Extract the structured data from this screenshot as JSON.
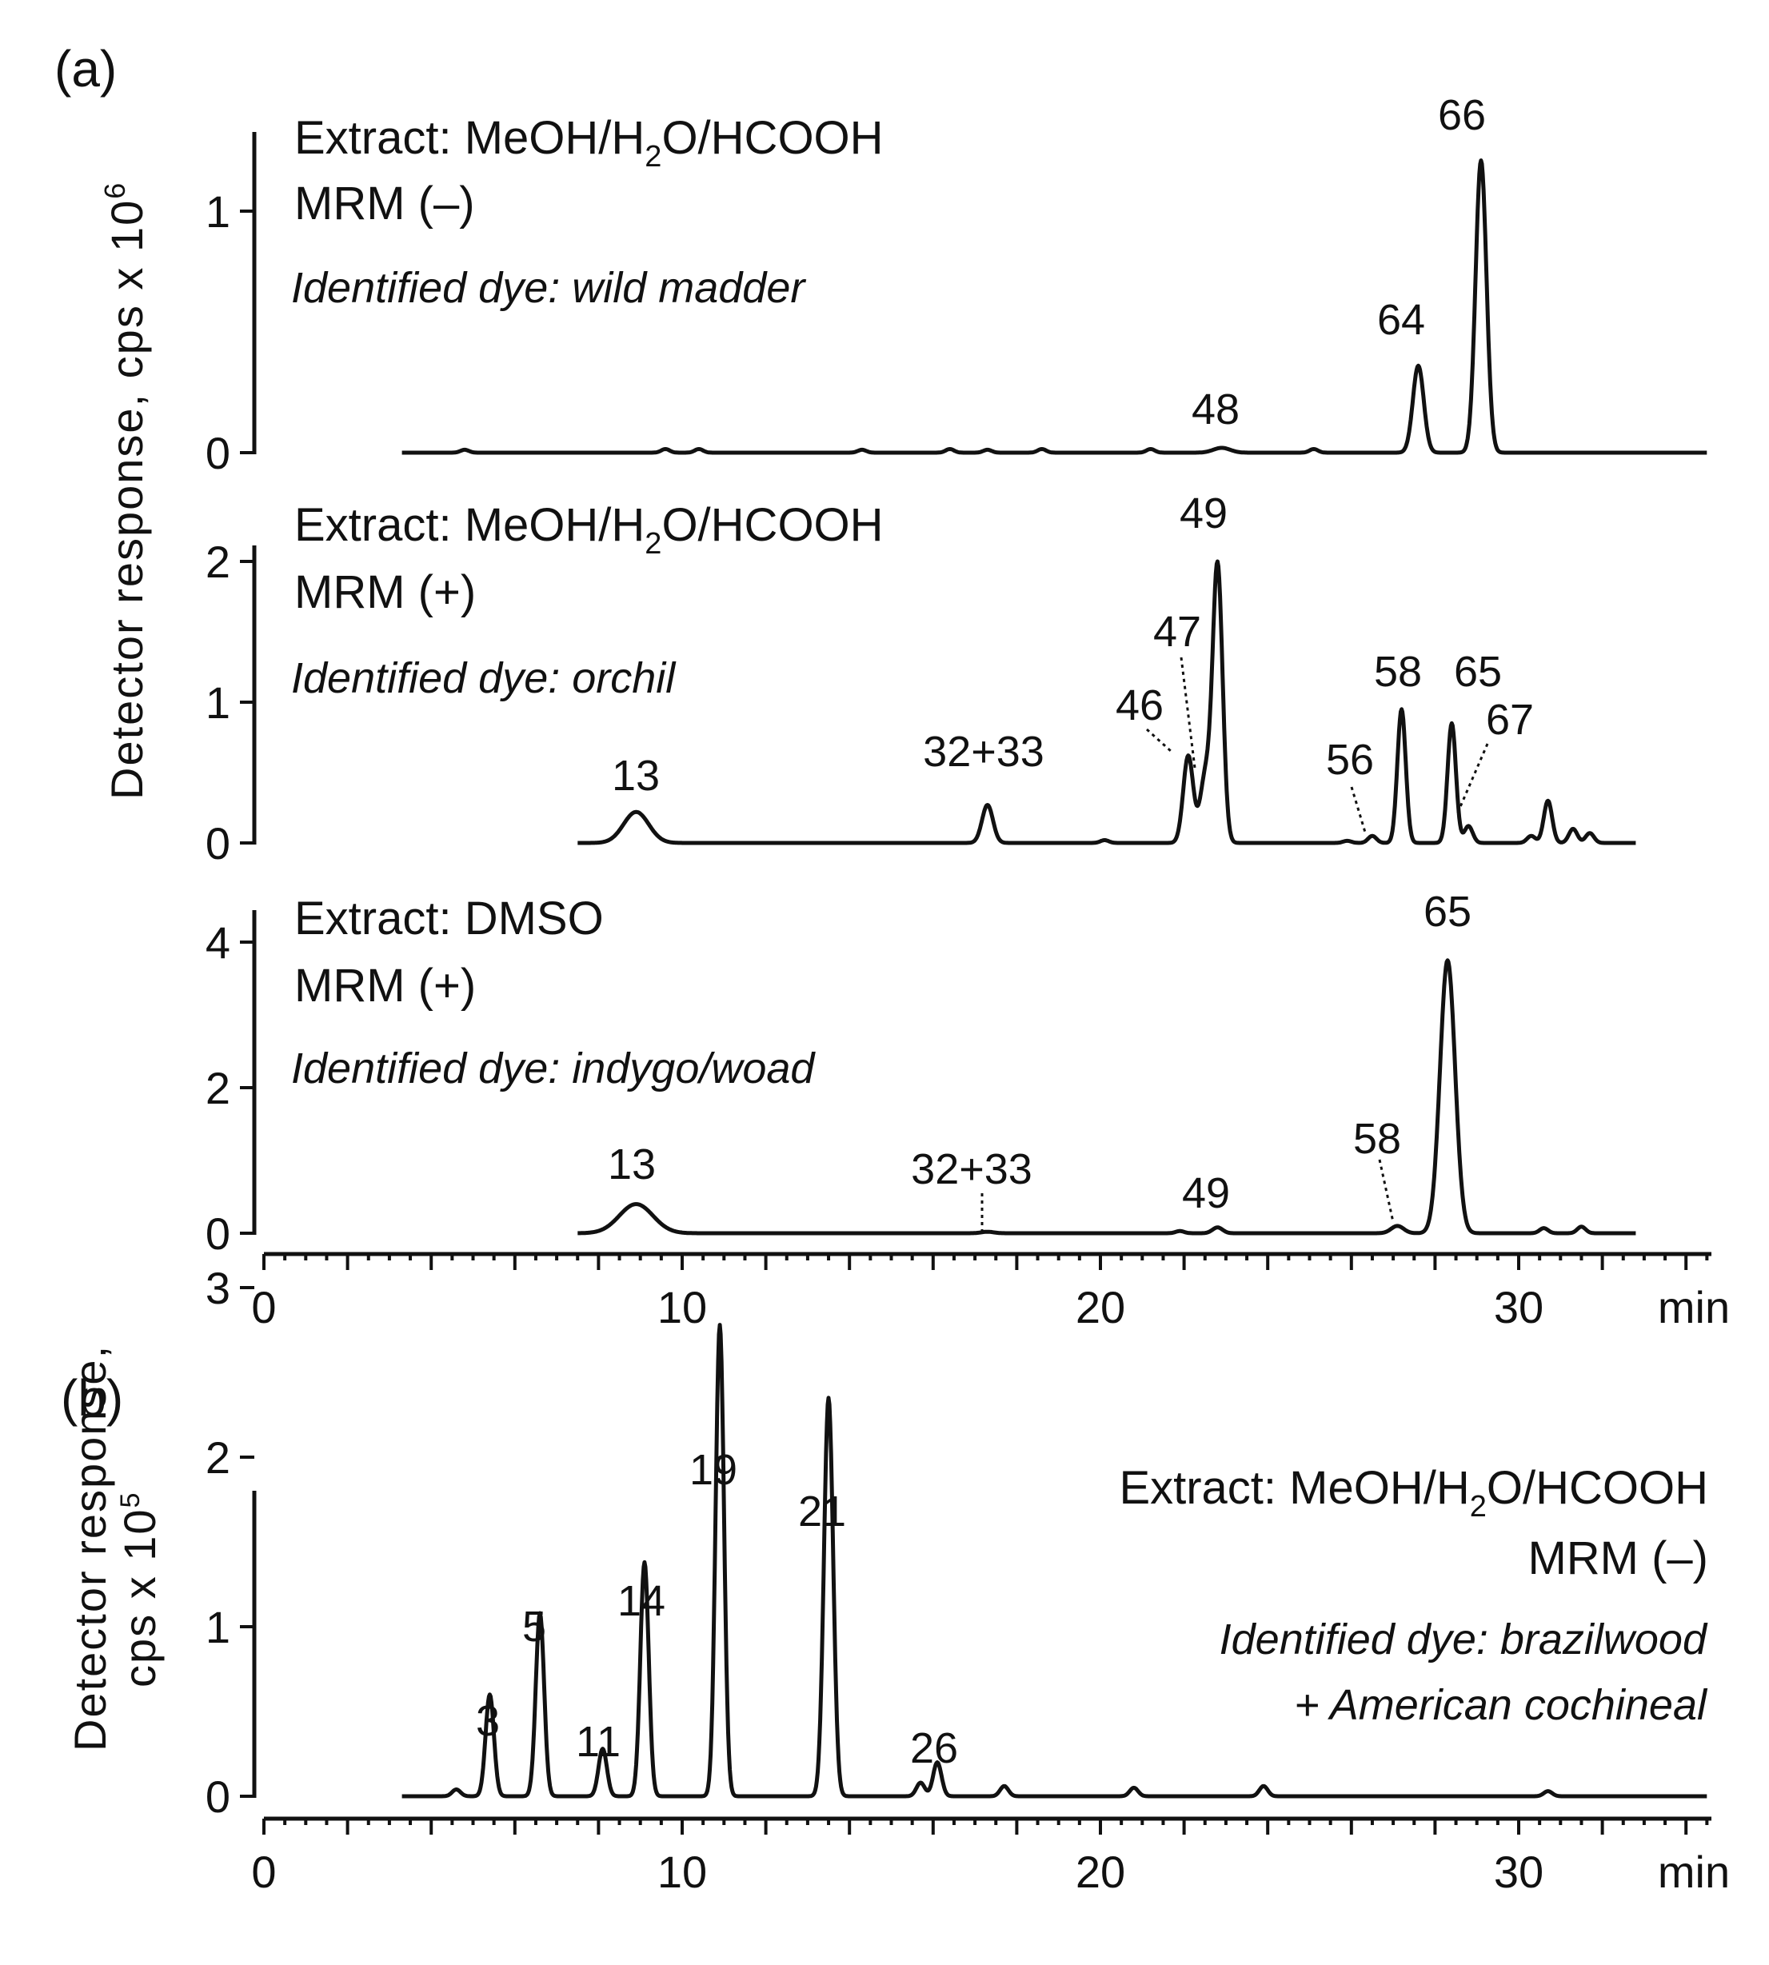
{
  "panels": {
    "a": {
      "letter": "(a)",
      "ylabel_main": "Detector response, cps x 10",
      "ylabel_exp": "6"
    },
    "b": {
      "letter": "(b)",
      "ylabel_line1": "Detector response,",
      "ylabel_line2_main": "cps x 10",
      "ylabel_line2_exp": "5",
      "info": {
        "extract_pre": "Extract: MeOH/H",
        "extract_sub": "2",
        "extract_post": "O/HCOOH",
        "mode": "MRM (–)",
        "dye_line1": "Identified dye:  brazilwood",
        "dye_line2": "+ American cochineal"
      }
    }
  },
  "chart_data": [
    {
      "type": "line",
      "panel": "a",
      "x_ticks": [
        0,
        10,
        20,
        30
      ],
      "x_unit": "min",
      "xlim": [
        0,
        34.5
      ],
      "y_ticks": [
        0,
        1
      ],
      "ylim": [
        0,
        1.2
      ],
      "peak_shape": "gaussian",
      "info": {
        "extract_pre": "Extract: MeOH/H",
        "extract_sub": "2",
        "extract_post": "O/HCOOH",
        "mode": "MRM (–)",
        "dye": "Identified dye: wild madder"
      },
      "trace_range": [
        3.3,
        34.5
      ],
      "peaks": [
        {
          "x": 22.9,
          "y": 0.02,
          "w": 0.2,
          "label": "48"
        },
        {
          "x": 27.6,
          "y": 0.36,
          "w": 0.13,
          "label": "64"
        },
        {
          "x": 29.1,
          "y": 1.21,
          "w": 0.13,
          "label": "66"
        }
      ],
      "bumps": [
        [
          4.8,
          0.012
        ],
        [
          9.6,
          0.015
        ],
        [
          10.4,
          0.015
        ],
        [
          14.3,
          0.012
        ],
        [
          16.4,
          0.015
        ],
        [
          17.3,
          0.012
        ],
        [
          18.6,
          0.015
        ],
        [
          21.2,
          0.015
        ],
        [
          25.1,
          0.015
        ]
      ]
    },
    {
      "type": "line",
      "panel": "a",
      "x_ticks": [
        0,
        10,
        20,
        30
      ],
      "x_unit": "min",
      "xlim": [
        0,
        34.5
      ],
      "y_ticks": [
        0,
        1,
        2
      ],
      "ylim": [
        0,
        2.1
      ],
      "peak_shape": "gaussian",
      "info": {
        "extract_pre": "Extract: MeOH/H",
        "extract_sub": "2",
        "extract_post": "O/HCOOH",
        "mode": "MRM (+)",
        "dye": "Identified dye: orchil"
      },
      "trace_range": [
        7.5,
        32.8
      ],
      "peaks": [
        {
          "x": 8.9,
          "y": 0.22,
          "w": 0.3,
          "label": "13"
        },
        {
          "x": 17.3,
          "y": 0.27,
          "w": 0.13,
          "label": "32+33"
        },
        {
          "x": 22.1,
          "y": 0.62,
          "w": 0.12,
          "label": "46"
        },
        {
          "x": 22.5,
          "y": 0.45,
          "w": 0.12,
          "label": "47"
        },
        {
          "x": 22.8,
          "y": 1.98,
          "w": 0.12,
          "label": "49"
        },
        {
          "x": 26.5,
          "y": 0.05,
          "w": 0.1,
          "label": "56"
        },
        {
          "x": 27.2,
          "y": 0.95,
          "w": 0.1,
          "label": "58"
        },
        {
          "x": 28.4,
          "y": 0.85,
          "w": 0.1,
          "label": "65"
        },
        {
          "x": 28.8,
          "y": 0.12,
          "w": 0.1,
          "label": "67"
        }
      ],
      "bumps": [
        [
          20.1,
          0.02
        ],
        [
          25.9,
          0.015
        ],
        [
          30.3,
          0.05
        ],
        [
          30.7,
          0.3
        ],
        [
          31.3,
          0.1
        ],
        [
          31.7,
          0.07
        ]
      ]
    },
    {
      "type": "line",
      "panel": "a",
      "x_ticks": [
        0,
        10,
        20,
        30
      ],
      "x_unit": "min",
      "xlim": [
        0,
        34.5
      ],
      "y_ticks": [
        0,
        2,
        4
      ],
      "ylim": [
        0,
        4.2
      ],
      "peak_shape": "gaussian",
      "info": {
        "extract": "Extract: DMSO",
        "mode": "MRM (+)",
        "dye": "Identified dye: indygo/woad"
      },
      "trace_range": [
        7.5,
        32.8
      ],
      "peaks": [
        {
          "x": 8.9,
          "y": 0.4,
          "w": 0.4,
          "label": "13"
        },
        {
          "x": 17.3,
          "y": 0.02,
          "w": 0.15,
          "label": "32+33"
        },
        {
          "x": 22.8,
          "y": 0.08,
          "w": 0.12,
          "label": "49"
        },
        {
          "x": 27.1,
          "y": 0.1,
          "w": 0.15,
          "label": "58"
        },
        {
          "x": 28.3,
          "y": 3.75,
          "w": 0.18,
          "label": "65"
        }
      ],
      "bumps": [
        [
          21.9,
          0.03
        ],
        [
          30.6,
          0.07
        ],
        [
          31.5,
          0.09
        ]
      ]
    },
    {
      "type": "line",
      "panel": "b",
      "x_ticks": [
        0,
        10,
        20,
        30
      ],
      "x_unit": "min",
      "xlim": [
        0,
        34.5
      ],
      "y_ticks": [
        0,
        1,
        2,
        3
      ],
      "ylim": [
        0,
        3.1
      ],
      "peak_shape": "gaussian",
      "trace_range": [
        3.3,
        34.5
      ],
      "peaks": [
        {
          "x": 5.4,
          "y": 0.6,
          "w": 0.1,
          "label": "3"
        },
        {
          "x": 6.6,
          "y": 1.08,
          "w": 0.1,
          "label": "5"
        },
        {
          "x": 8.1,
          "y": 0.28,
          "w": 0.1,
          "label": "11"
        },
        {
          "x": 9.1,
          "y": 1.38,
          "w": 0.1,
          "label": "14"
        },
        {
          "x": 10.9,
          "y": 2.78,
          "w": 0.1,
          "label": "19"
        },
        {
          "x": 13.5,
          "y": 2.35,
          "w": 0.11,
          "label": "21"
        },
        {
          "x": 16.1,
          "y": 0.2,
          "w": 0.1,
          "label": "26"
        }
      ],
      "bumps": [
        [
          4.6,
          0.04
        ],
        [
          15.7,
          0.08
        ],
        [
          17.7,
          0.06
        ],
        [
          20.8,
          0.05
        ],
        [
          23.9,
          0.06
        ],
        [
          30.7,
          0.03
        ]
      ]
    }
  ]
}
